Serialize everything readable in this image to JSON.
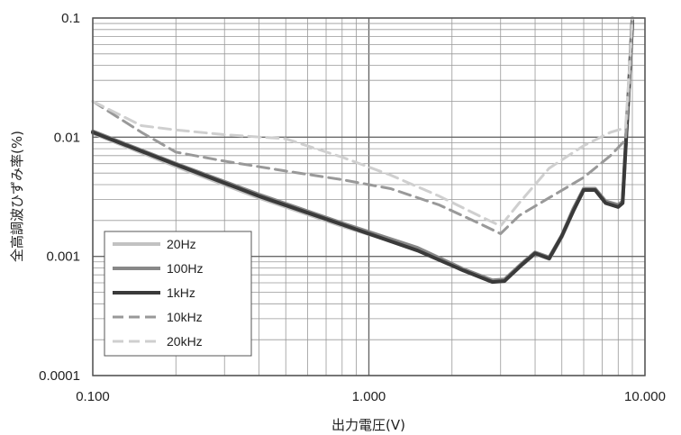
{
  "chart_data": {
    "type": "line",
    "title": "",
    "xlabel": "出力電圧(V)",
    "ylabel": "全高調波ひずみ率(%)",
    "x_scale": "log",
    "y_scale": "log",
    "xlim": [
      0.1,
      10
    ],
    "ylim": [
      0.0001,
      0.1
    ],
    "x_ticks": [
      "0.100",
      "1.000",
      "10.000"
    ],
    "y_ticks": [
      "0.0001",
      "0.001",
      "0.01",
      "0.1"
    ],
    "grid": true,
    "legend_position": "bottom-left",
    "series": [
      {
        "name": "20Hz",
        "color": "#c2c2c2",
        "dash": "solid",
        "x": [
          0.1,
          0.2,
          0.4,
          0.8,
          1.5,
          2.2,
          2.8,
          3.1,
          3.6,
          4.0,
          4.5,
          5.0,
          5.5,
          6.0,
          6.6,
          7.2,
          8.0,
          8.3,
          8.7,
          9.0
        ],
        "y": [
          0.0108,
          0.0057,
          0.0031,
          0.0018,
          0.00115,
          0.00077,
          0.00062,
          0.00063,
          0.00085,
          0.00105,
          0.00095,
          0.00145,
          0.0024,
          0.0036,
          0.0036,
          0.0028,
          0.0026,
          0.0028,
          0.022,
          0.1
        ]
      },
      {
        "name": "100Hz",
        "color": "#888888",
        "dash": "solid",
        "x": [
          0.1,
          0.2,
          0.4,
          0.8,
          1.5,
          2.2,
          2.8,
          3.1,
          3.6,
          4.0,
          4.5,
          5.0,
          5.5,
          6.0,
          6.6,
          7.2,
          8.0,
          8.3,
          8.7,
          9.0
        ],
        "y": [
          0.0112,
          0.006,
          0.0033,
          0.0019,
          0.00118,
          0.00078,
          0.00063,
          0.00064,
          0.00088,
          0.00108,
          0.00098,
          0.0015,
          0.0025,
          0.0037,
          0.0037,
          0.0029,
          0.0027,
          0.0029,
          0.02,
          0.09
        ]
      },
      {
        "name": "1kHz",
        "color": "#3a3a3a",
        "dash": "solid",
        "x": [
          0.1,
          0.2,
          0.4,
          0.8,
          1.5,
          2.2,
          2.8,
          3.1,
          3.6,
          4.0,
          4.5,
          5.0,
          5.5,
          6.0,
          6.6,
          7.2,
          8.0,
          8.3,
          8.7,
          9.0
        ],
        "y": [
          0.011,
          0.0059,
          0.0032,
          0.00185,
          0.00112,
          0.00076,
          0.00061,
          0.00062,
          0.00086,
          0.00106,
          0.00096,
          0.00148,
          0.0024,
          0.0036,
          0.0036,
          0.0028,
          0.0026,
          0.0028,
          0.021,
          0.095
        ]
      },
      {
        "name": "10kHz",
        "color": "#999999",
        "dash": "dashed",
        "x": [
          0.1,
          0.15,
          0.2,
          0.3,
          0.5,
          0.8,
          1.2,
          1.8,
          2.5,
          3.0,
          3.5,
          4.5,
          6.0,
          7.5,
          8.5,
          8.8,
          9.0
        ],
        "y": [
          0.02,
          0.011,
          0.0075,
          0.0063,
          0.0052,
          0.0044,
          0.0037,
          0.0027,
          0.0019,
          0.00155,
          0.0022,
          0.0031,
          0.0046,
          0.007,
          0.0095,
          0.03,
          0.1
        ]
      },
      {
        "name": "20kHz",
        "color": "#cfcfcf",
        "dash": "dashed",
        "x": [
          0.1,
          0.15,
          0.2,
          0.3,
          0.5,
          0.8,
          1.2,
          1.8,
          2.5,
          3.0,
          3.5,
          4.5,
          6.0,
          7.5,
          8.5,
          8.8,
          9.0
        ],
        "y": [
          0.02,
          0.0125,
          0.0115,
          0.0105,
          0.0097,
          0.0068,
          0.0048,
          0.0032,
          0.0022,
          0.0018,
          0.0028,
          0.0055,
          0.0085,
          0.011,
          0.012,
          0.04,
          0.1
        ]
      }
    ]
  }
}
